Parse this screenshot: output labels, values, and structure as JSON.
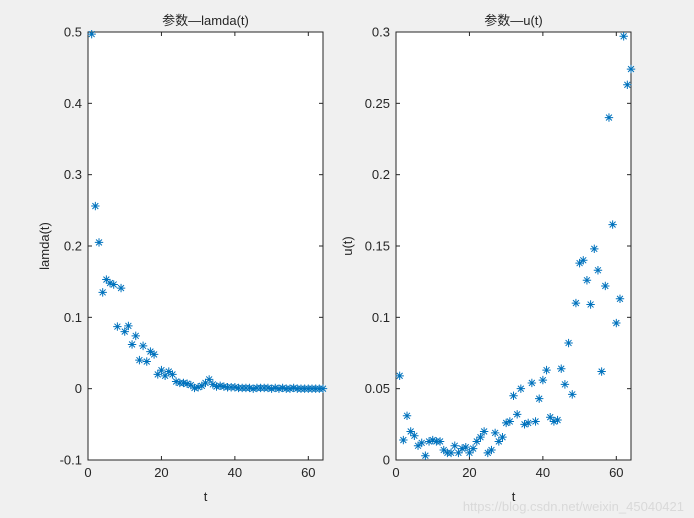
{
  "watermark": "https://blog.csdn.net/weixin_45040421",
  "chart_data": [
    {
      "type": "scatter",
      "title": "参数—lamda(t)",
      "xlabel": "t",
      "ylabel": "lamda(t)",
      "xlim": [
        0,
        64
      ],
      "ylim": [
        -0.1,
        0.5
      ],
      "xticks": [
        0,
        20,
        40,
        60
      ],
      "yticks": [
        -0.1,
        0,
        0.1,
        0.2,
        0.3,
        0.4,
        0.5
      ],
      "ytick_labels": [
        "-0.1",
        "0",
        "0.1",
        "0.2",
        "0.3",
        "0.4",
        "0.5"
      ],
      "marker": "*",
      "color": "#0072bd",
      "grid": false,
      "x": [
        1,
        2,
        3,
        4,
        5,
        6,
        7,
        8,
        9,
        10,
        11,
        12,
        13,
        14,
        15,
        16,
        17,
        18,
        19,
        20,
        21,
        22,
        23,
        24,
        25,
        26,
        27,
        28,
        29,
        30,
        31,
        32,
        33,
        34,
        35,
        36,
        37,
        38,
        39,
        40,
        41,
        42,
        43,
        44,
        45,
        46,
        47,
        48,
        49,
        50,
        51,
        52,
        53,
        54,
        55,
        56,
        57,
        58,
        59,
        60,
        61,
        62,
        63,
        64
      ],
      "y": [
        0.497,
        0.256,
        0.205,
        0.135,
        0.153,
        0.148,
        0.146,
        0.087,
        0.141,
        0.08,
        0.088,
        0.062,
        0.074,
        0.04,
        0.06,
        0.038,
        0.052,
        0.048,
        0.02,
        0.026,
        0.018,
        0.024,
        0.02,
        0.01,
        0.008,
        0.008,
        0.007,
        0.005,
        0.001,
        0.002,
        0.004,
        0.008,
        0.013,
        0.006,
        0.003,
        0.004,
        0.003,
        0.002,
        0.002,
        0.002,
        0.001,
        0.001,
        0.001,
        0.001,
        0.0,
        0.001,
        0.001,
        0.001,
        0.001,
        0.0,
        0.001,
        0.0,
        0.001,
        0.0,
        0.0,
        0.001,
        0.0,
        0.0,
        0.0,
        0.0,
        0.0,
        0.0,
        0.0,
        0.0
      ]
    },
    {
      "type": "scatter",
      "title": "参数—u(t)",
      "xlabel": "t",
      "ylabel": "u(t)",
      "xlim": [
        0,
        64
      ],
      "ylim": [
        0,
        0.3
      ],
      "xticks": [
        0,
        20,
        40,
        60
      ],
      "yticks": [
        0,
        0.05,
        0.1,
        0.15,
        0.2,
        0.25,
        0.3
      ],
      "ytick_labels": [
        "0",
        "0.05",
        "0.1",
        "0.15",
        "0.2",
        "0.25",
        "0.3"
      ],
      "marker": "*",
      "color": "#0072bd",
      "grid": false,
      "x": [
        1,
        2,
        3,
        4,
        5,
        6,
        7,
        8,
        9,
        10,
        11,
        12,
        13,
        14,
        15,
        16,
        17,
        18,
        19,
        20,
        21,
        22,
        23,
        24,
        25,
        26,
        27,
        28,
        29,
        30,
        31,
        32,
        33,
        34,
        35,
        36,
        37,
        38,
        39,
        40,
        41,
        42,
        43,
        44,
        45,
        46,
        47,
        48,
        49,
        50,
        51,
        52,
        53,
        54,
        55,
        56,
        57,
        58,
        59,
        60,
        61,
        62,
        63,
        64
      ],
      "y": [
        0.059,
        0.014,
        0.031,
        0.02,
        0.017,
        0.01,
        0.012,
        0.003,
        0.013,
        0.014,
        0.013,
        0.013,
        0.007,
        0.005,
        0.005,
        0.01,
        0.005,
        0.008,
        0.009,
        0.005,
        0.008,
        0.013,
        0.016,
        0.02,
        0.005,
        0.007,
        0.019,
        0.013,
        0.016,
        0.026,
        0.027,
        0.045,
        0.032,
        0.05,
        0.025,
        0.026,
        0.054,
        0.027,
        0.043,
        0.056,
        0.063,
        0.03,
        0.027,
        0.028,
        0.064,
        0.053,
        0.082,
        0.046,
        0.11,
        0.138,
        0.14,
        0.126,
        0.109,
        0.148,
        0.133,
        0.062,
        0.122,
        0.24,
        0.165,
        0.096,
        0.113,
        0.297,
        0.263,
        0.274
      ]
    }
  ]
}
